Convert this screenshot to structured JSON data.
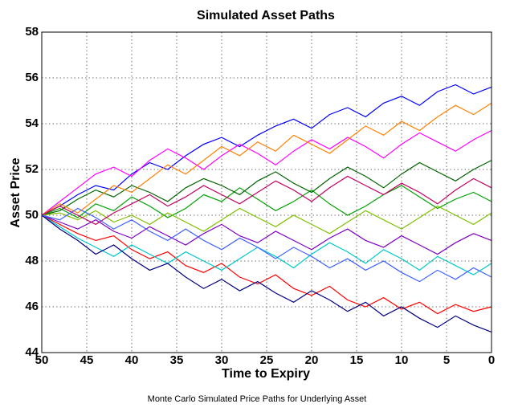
{
  "chart_data": {
    "type": "line",
    "title": "Simulated Asset Paths",
    "x_label": "Time to Expiry",
    "y_label": "Asset Price",
    "caption": "Monte Carlo Simulated Price Paths for Underlying Asset",
    "x": [
      50,
      48,
      46,
      44,
      42,
      40,
      38,
      36,
      34,
      32,
      30,
      28,
      26,
      24,
      22,
      20,
      18,
      16,
      14,
      12,
      10,
      8,
      6,
      4,
      2,
      0
    ],
    "xlim": [
      50,
      0
    ],
    "xticks": [
      50,
      45,
      40,
      35,
      30,
      25,
      20,
      15,
      10,
      5,
      0
    ],
    "ylim": [
      44,
      58
    ],
    "yticks": [
      44,
      46,
      48,
      50,
      52,
      54,
      56,
      58
    ],
    "grid": true,
    "series": [
      {
        "color": "#0000ff",
        "values": [
          50,
          50.4,
          50.9,
          51.3,
          51.1,
          51.8,
          52.3,
          52.0,
          52.6,
          53.1,
          53.4,
          53.0,
          53.5,
          53.9,
          54.2,
          53.8,
          54.4,
          54.7,
          54.3,
          54.9,
          55.2,
          54.8,
          55.4,
          55.7,
          55.3,
          55.6
        ]
      },
      {
        "color": "#ff0000",
        "values": [
          50,
          49.6,
          49.2,
          48.9,
          49.1,
          48.5,
          48.1,
          48.4,
          47.8,
          47.5,
          47.9,
          47.3,
          47.0,
          47.4,
          46.8,
          46.5,
          46.9,
          46.3,
          46.0,
          46.4,
          45.9,
          46.2,
          45.7,
          46.1,
          45.8,
          46.0
        ]
      },
      {
        "color": "#00a000",
        "values": [
          50,
          50.3,
          49.9,
          50.5,
          50.2,
          50.8,
          50.4,
          49.9,
          50.3,
          50.9,
          50.6,
          51.2,
          50.7,
          50.2,
          50.6,
          51.1,
          50.5,
          50.0,
          50.4,
          50.9,
          51.3,
          50.8,
          50.3,
          50.7,
          51.0,
          50.6
        ]
      },
      {
        "color": "#ff00ff",
        "values": [
          50,
          50.6,
          51.2,
          51.8,
          52.1,
          51.7,
          52.4,
          52.9,
          52.5,
          52.0,
          52.6,
          53.1,
          52.7,
          52.2,
          52.8,
          53.3,
          52.9,
          53.4,
          53.0,
          52.5,
          53.1,
          53.6,
          53.2,
          52.8,
          53.3,
          53.7
        ]
      },
      {
        "color": "#00c8c8",
        "values": [
          50,
          49.5,
          49.0,
          48.6,
          48.2,
          48.7,
          48.3,
          47.9,
          48.4,
          48.0,
          47.6,
          48.1,
          48.6,
          48.2,
          47.7,
          48.3,
          48.8,
          48.4,
          47.9,
          48.5,
          48.1,
          47.6,
          48.2,
          47.8,
          47.4,
          47.9
        ]
      },
      {
        "color": "#006400",
        "values": [
          50,
          50.2,
          50.7,
          51.1,
          50.8,
          51.3,
          51.0,
          50.6,
          51.2,
          51.6,
          51.3,
          50.9,
          51.5,
          51.9,
          51.4,
          51.0,
          51.6,
          52.1,
          51.7,
          51.2,
          51.8,
          52.3,
          51.9,
          51.5,
          52.0,
          52.4
        ]
      },
      {
        "color": "#8000c0",
        "values": [
          50,
          49.7,
          49.4,
          49.8,
          49.3,
          49.0,
          49.5,
          49.1,
          48.7,
          49.2,
          49.6,
          49.1,
          48.8,
          49.3,
          48.9,
          48.5,
          49.0,
          49.4,
          48.9,
          48.6,
          49.1,
          48.7,
          48.3,
          48.8,
          49.2,
          48.9
        ]
      },
      {
        "color": "#ff8000",
        "values": [
          50,
          50.5,
          50.1,
          50.7,
          51.3,
          51.0,
          51.6,
          52.2,
          51.8,
          52.4,
          53.0,
          52.6,
          53.2,
          52.8,
          53.5,
          53.1,
          52.7,
          53.3,
          53.9,
          53.5,
          54.1,
          53.7,
          54.3,
          54.8,
          54.4,
          54.9
        ]
      },
      {
        "color": "#000080",
        "values": [
          50,
          49.4,
          48.9,
          48.3,
          48.7,
          48.1,
          47.6,
          47.9,
          47.3,
          46.8,
          47.2,
          46.7,
          47.1,
          46.6,
          46.2,
          46.7,
          46.3,
          45.8,
          46.2,
          45.6,
          46.0,
          45.5,
          45.1,
          45.6,
          45.2,
          44.9
        ]
      },
      {
        "color": "#80c000",
        "values": [
          50,
          50.1,
          49.8,
          50.2,
          49.7,
          50.0,
          49.6,
          50.1,
          49.7,
          49.3,
          49.8,
          50.3,
          49.9,
          49.5,
          50.0,
          49.6,
          49.2,
          49.7,
          50.2,
          49.8,
          49.4,
          49.9,
          50.4,
          50.0,
          49.6,
          50.1
        ]
      },
      {
        "color": "#c00060",
        "values": [
          50,
          50.4,
          50.0,
          49.6,
          50.1,
          50.5,
          50.9,
          50.4,
          50.8,
          51.3,
          50.9,
          50.5,
          51.0,
          51.5,
          51.1,
          50.6,
          51.2,
          51.7,
          51.3,
          50.9,
          51.4,
          51.0,
          50.5,
          51.1,
          51.6,
          51.2
        ]
      },
      {
        "color": "#4060ff",
        "values": [
          50,
          49.8,
          50.3,
          49.9,
          49.4,
          49.8,
          49.3,
          48.9,
          49.4,
          48.9,
          48.5,
          49.0,
          48.6,
          48.1,
          48.6,
          48.2,
          47.7,
          48.1,
          47.6,
          48.0,
          47.5,
          47.1,
          47.6,
          47.2,
          47.7,
          47.3
        ]
      }
    ]
  }
}
